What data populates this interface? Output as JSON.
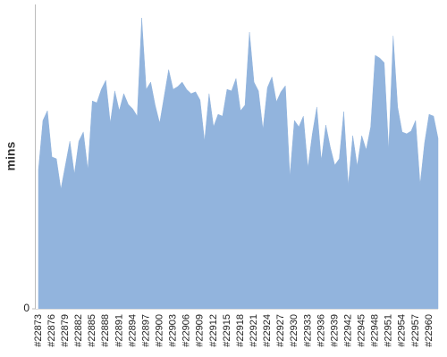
{
  "chart_data": {
    "type": "area",
    "y_label": "mins",
    "color": "#92b4dd",
    "categories": [
      "#22873",
      null,
      null,
      "#22876",
      null,
      null,
      "#22879",
      null,
      null,
      "#22882",
      null,
      null,
      "#22885",
      null,
      null,
      "#22888",
      null,
      null,
      "#22891",
      null,
      null,
      "#22894",
      null,
      null,
      "#22897",
      null,
      null,
      "#22900",
      null,
      null,
      "#22903",
      null,
      null,
      "#22906",
      null,
      null,
      "#22909",
      null,
      null,
      "#22912",
      null,
      null,
      "#22915",
      null,
      null,
      "#22918",
      null,
      null,
      "#22921",
      null,
      null,
      "#22924",
      null,
      null,
      "#22927",
      null,
      null,
      "#22930",
      null,
      null,
      "#22933",
      null,
      null,
      "#22936",
      null,
      null,
      "#22939",
      null,
      null,
      "#22942",
      null,
      null,
      "#22945",
      null,
      null,
      "#22948",
      null,
      null,
      "#22951",
      null,
      null,
      "#22954",
      null,
      null,
      "#22957",
      null,
      null,
      "#22960",
      null,
      null
    ],
    "values": [
      45.7,
      61.9,
      65.1,
      49.9,
      49.3,
      39.3,
      47.2,
      55.1,
      44.3,
      55.1,
      58.1,
      45.7,
      68.3,
      67.7,
      72.1,
      75.1,
      61.0,
      71.6,
      65.1,
      70.7,
      67.2,
      65.7,
      63.3,
      95.6,
      72.1,
      74.5,
      66.9,
      61.0,
      69.8,
      78.6,
      72.1,
      73.0,
      74.5,
      72.1,
      70.7,
      71.3,
      68.6,
      55.1,
      70.7,
      59.8,
      63.9,
      63.3,
      72.1,
      71.6,
      75.7,
      65.1,
      66.9,
      90.9,
      74.5,
      71.6,
      58.9,
      72.7,
      76.2,
      68.0,
      71.3,
      73.3,
      43.4,
      61.9,
      59.8,
      63.3,
      46.3,
      57.5,
      66.3,
      48.7,
      60.4,
      53.1,
      47.2,
      49.3,
      64.8,
      40.5,
      56.9,
      46.9,
      56.9,
      52.2,
      59.8,
      83.3,
      82.4,
      80.9,
      52.2,
      89.7,
      66.3,
      58.1,
      57.5,
      58.4,
      61.9,
      40.8,
      54.5,
      63.9,
      63.3,
      56.0
    ],
    "ylim": [
      0,
      100
    ],
    "yticks": [
      0
    ]
  }
}
